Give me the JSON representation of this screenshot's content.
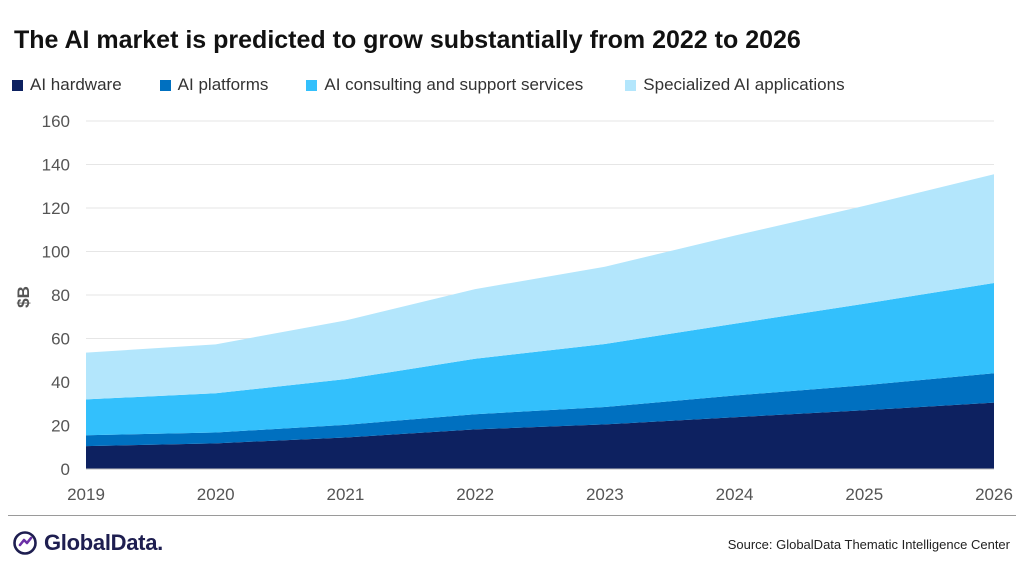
{
  "title": "The AI market is predicted to grow substantially from 2022 to 2026",
  "source": "Source: GlobalData Thematic Intelligence Center",
  "logo": {
    "text": "GlobalData."
  },
  "chart_data": {
    "type": "area",
    "stacked": true,
    "x": [
      "2019",
      "2020",
      "2021",
      "2022",
      "2023",
      "2024",
      "2025",
      "2026"
    ],
    "series": [
      {
        "name": "AI hardware",
        "color": "#0d2160",
        "values": [
          10.5,
          11.8,
          14.5,
          18.2,
          20.5,
          23.8,
          27.0,
          30.5
        ]
      },
      {
        "name": "AI platforms",
        "color": "#0070c0",
        "values": [
          5.0,
          5.0,
          5.8,
          7.0,
          8.0,
          10.0,
          11.5,
          13.5
        ]
      },
      {
        "name": "AI consulting and support services",
        "color": "#33c0fc",
        "values": [
          16.5,
          18.0,
          21.0,
          25.5,
          29.0,
          33.0,
          37.5,
          41.5
        ]
      },
      {
        "name": "Specialized AI applications",
        "color": "#b3e6fc",
        "values": [
          21.5,
          22.5,
          27.0,
          32.0,
          35.5,
          40.5,
          45.0,
          50.0
        ]
      }
    ],
    "ylabel": "$B",
    "xlabel": "",
    "ylim": [
      0,
      160
    ],
    "yticks": [
      0,
      20,
      40,
      60,
      80,
      100,
      120,
      140,
      160
    ],
    "grid": true,
    "legend": "top-left"
  }
}
